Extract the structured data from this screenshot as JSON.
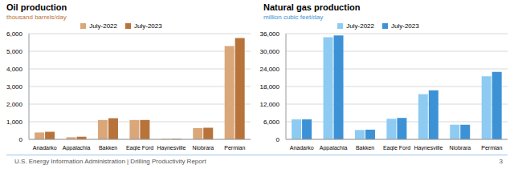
{
  "chart_data": [
    {
      "type": "bar",
      "title": "Oil production",
      "subtitle": "thousand barrels/day",
      "categories": [
        "Anadarko",
        "Appalachia",
        "Bakken",
        "Eagle Ford",
        "Haynesville",
        "Niobrara",
        "Permian"
      ],
      "series": [
        {
          "name": "July-2022",
          "color": "#d9a77a",
          "values": [
            390,
            120,
            1100,
            1100,
            40,
            640,
            5300
          ]
        },
        {
          "name": "July-2023",
          "color": "#b8733a",
          "values": [
            430,
            150,
            1200,
            1100,
            40,
            660,
            5750
          ]
        }
      ],
      "ylim": [
        0,
        6000
      ],
      "yticks": [
        0,
        {
          "value": 1000,
          "label": "1,000"
        },
        {
          "value": 2000,
          "label": "2,000"
        },
        {
          "value": 3000,
          "label": "3,000"
        },
        {
          "value": 4000,
          "label": "4,000"
        },
        {
          "value": 5000,
          "label": "5,000"
        },
        {
          "value": 6000,
          "label": "6,000"
        }
      ],
      "grid": true,
      "legend": "top"
    },
    {
      "type": "bar",
      "title": "Natural gas production",
      "subtitle": "million cubic feet/day",
      "categories": [
        "Anadarko",
        "Appalachia",
        "Bakken",
        "Eagle Ford",
        "Haynesville",
        "Niobrara",
        "Permian"
      ],
      "series": [
        {
          "name": "July-2022",
          "color": "#8ecbf2",
          "values": [
            6800,
            34800,
            3200,
            7000,
            15400,
            5000,
            21500
          ]
        },
        {
          "name": "July-2023",
          "color": "#3d92d6",
          "values": [
            6800,
            35400,
            3300,
            7300,
            16700,
            5000,
            23000
          ]
        }
      ],
      "ylim": [
        0,
        36000
      ],
      "yticks": [
        0,
        {
          "value": 6000,
          "label": "6,000"
        },
        {
          "value": 12000,
          "label": "12,000"
        },
        {
          "value": 18000,
          "label": "18,000"
        },
        {
          "value": 24000,
          "label": "24,000"
        },
        {
          "value": 30000,
          "label": "30,000"
        },
        {
          "value": 36000,
          "label": "36,000"
        }
      ],
      "grid": true,
      "legend": "top"
    }
  ],
  "footer": {
    "source": "U.S. Energy Information Administration | Drilling Productivity Report",
    "page": "3"
  }
}
